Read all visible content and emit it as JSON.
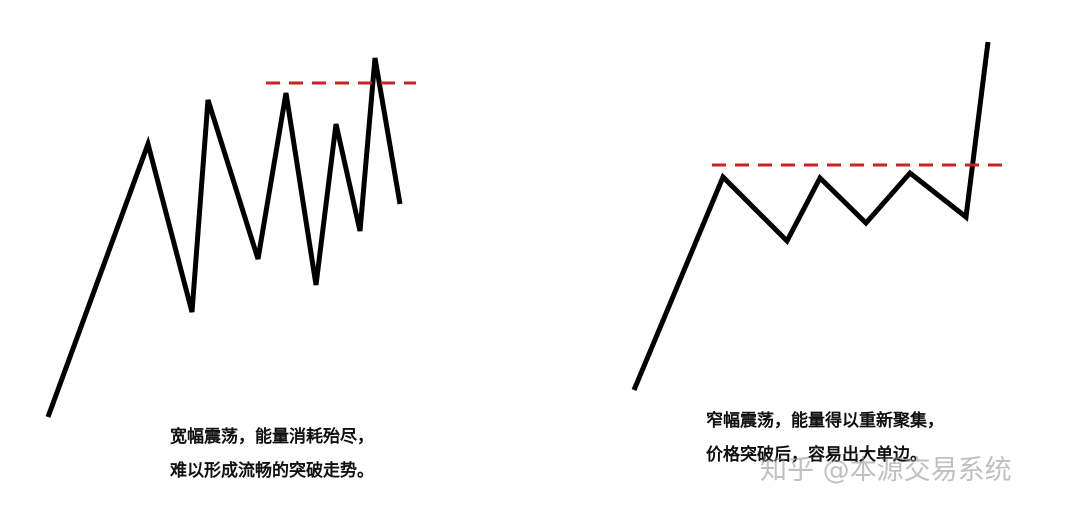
{
  "left_panel": {
    "caption_line1": "宽幅震荡，能量消耗殆尽，",
    "caption_line2": "难以形成流畅的突破走势。"
  },
  "right_panel": {
    "caption_line1": "窄幅震荡，能量得以重新聚集，",
    "caption_line2": "价格突破后，容易出大单边。"
  },
  "watermark": "知乎 @本源交易系统",
  "colors": {
    "price_line": "#000000",
    "resistance_line": "#cc2222",
    "background": "#ffffff"
  }
}
